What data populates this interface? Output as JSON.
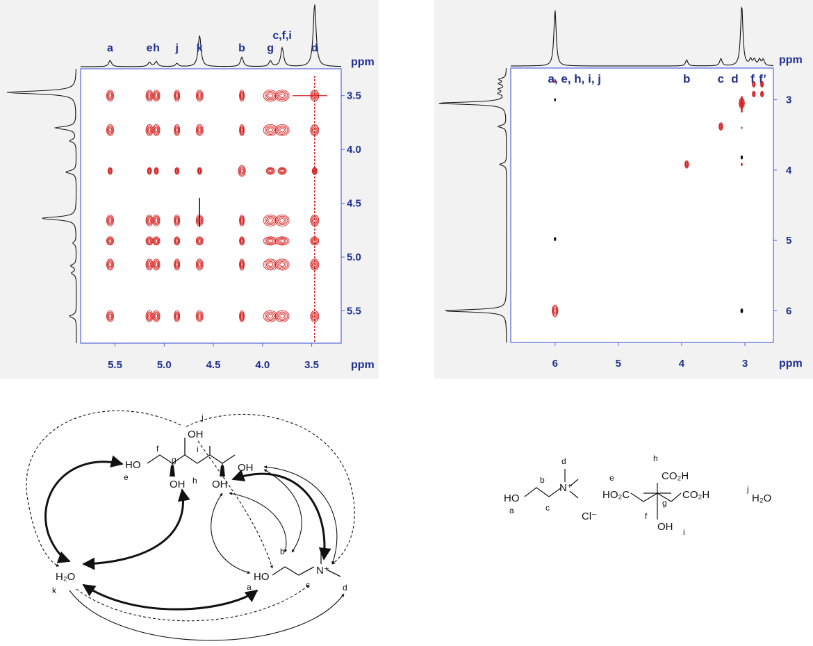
{
  "chart_data": [
    {
      "type": "scatter",
      "subtype": "2D NMR contour map",
      "x_unit": "ppm",
      "y_unit": "ppm",
      "xlim": [
        5.85,
        3.2
      ],
      "ylim": [
        3.25,
        5.8
      ],
      "x_ticks": [
        "5.5",
        "5.0",
        "4.5",
        "4.0",
        "3.5"
      ],
      "y_ticks": [
        "3.5",
        "4.0",
        "4.5",
        "5.0",
        "5.5"
      ],
      "peak_labels": [
        {
          "text": "a",
          "ppm": 5.55
        },
        {
          "text": "e",
          "ppm": 5.15
        },
        {
          "text": "h",
          "ppm": 5.08
        },
        {
          "text": "j",
          "ppm": 4.87
        },
        {
          "text": "k",
          "ppm": 4.64
        },
        {
          "text": "b",
          "ppm": 4.21
        },
        {
          "text": "g",
          "ppm": 3.92
        },
        {
          "text": "c,f,i",
          "ppm": 3.8
        },
        {
          "text": "d",
          "ppm": 3.47
        }
      ],
      "projection_peaks": [
        {
          "ppm": 5.55,
          "h": 0.1
        },
        {
          "ppm": 5.15,
          "h": 0.07
        },
        {
          "ppm": 5.08,
          "h": 0.08
        },
        {
          "ppm": 4.87,
          "h": 0.05
        },
        {
          "ppm": 4.64,
          "h": 0.5
        },
        {
          "ppm": 4.21,
          "h": 0.15
        },
        {
          "ppm": 3.92,
          "h": 0.09
        },
        {
          "ppm": 3.8,
          "h": 0.3
        },
        {
          "ppm": 3.47,
          "h": 1.0
        }
      ],
      "cross_peak_x": [
        5.55,
        5.15,
        5.08,
        4.87,
        4.64,
        4.21,
        3.92,
        3.8,
        3.47
      ],
      "cross_peak_y": [
        3.5,
        3.82,
        4.2,
        4.66,
        4.85,
        5.07,
        5.55
      ]
    },
    {
      "type": "scatter",
      "subtype": "2D NMR contour map",
      "x_unit": "ppm",
      "y_unit": "ppm",
      "xlim": [
        6.7,
        2.55
      ],
      "ylim": [
        2.55,
        6.45
      ],
      "x_ticks": [
        "6",
        "5",
        "4",
        "3"
      ],
      "y_ticks": [
        "3",
        "4",
        "5",
        "6"
      ],
      "peak_labels": [
        {
          "text": "a, e, h, i, j",
          "ppm": 6.0
        },
        {
          "text": "b",
          "ppm": 3.92
        },
        {
          "text": "c",
          "ppm": 3.38
        },
        {
          "text": "d",
          "ppm": 3.05
        },
        {
          "text": "f",
          "ppm": 2.88
        },
        {
          "text": "f’",
          "ppm": 2.75
        }
      ],
      "projection_peaks": [
        {
          "ppm": 6.0,
          "h": 0.92
        },
        {
          "ppm": 3.92,
          "h": 0.1
        },
        {
          "ppm": 3.38,
          "h": 0.12
        },
        {
          "ppm": 3.05,
          "h": 1.0
        },
        {
          "ppm": 2.91,
          "h": 0.1
        },
        {
          "ppm": 2.85,
          "h": 0.1
        },
        {
          "ppm": 2.77,
          "h": 0.1
        },
        {
          "ppm": 2.71,
          "h": 0.1
        }
      ],
      "cross_peaks": [
        {
          "x": 6.0,
          "y": 6.0,
          "c": "red",
          "s": 1.4
        },
        {
          "x": 3.92,
          "y": 3.92,
          "c": "red",
          "s": 0.9
        },
        {
          "x": 3.38,
          "y": 3.38,
          "c": "red",
          "s": 0.9
        },
        {
          "x": 3.05,
          "y": 3.05,
          "c": "red",
          "s": 1.3
        },
        {
          "x": 2.86,
          "y": 2.78,
          "c": "red",
          "s": 0.7
        },
        {
          "x": 2.86,
          "y": 2.92,
          "c": "red",
          "s": 0.7
        },
        {
          "x": 2.73,
          "y": 2.78,
          "c": "red",
          "s": 0.7
        },
        {
          "x": 2.73,
          "y": 2.92,
          "c": "red",
          "s": 0.7
        },
        {
          "x": 6.0,
          "y": 2.73,
          "c": "red",
          "s": 0.3
        },
        {
          "x": 6.0,
          "y": 3.0,
          "c": "black",
          "s": 0.3
        },
        {
          "x": 6.0,
          "y": 4.98,
          "c": "black",
          "s": 0.4
        },
        {
          "x": 3.05,
          "y": 3.82,
          "c": "black",
          "s": 0.4
        },
        {
          "x": 3.05,
          "y": 3.92,
          "c": "red",
          "s": 0.3
        },
        {
          "x": 3.05,
          "y": 3.4,
          "c": "red",
          "s": 0.2
        },
        {
          "x": 3.05,
          "y": 6.0,
          "c": "black",
          "s": 0.5
        }
      ]
    }
  ],
  "units": {
    "ppm": "ppm"
  },
  "structure_left": {
    "glycerol_oh": "OH",
    "label_j": "j",
    "ho": "HO",
    "label_e": "e",
    "label_f": "f",
    "label_g": "g",
    "label_h": "h",
    "label_i": "i",
    "oh_h": "OH",
    "oh_i": "OH",
    "oh_end": "OH",
    "water": "H₂O",
    "label_k": "k",
    "choline_ho": "HO",
    "label_a": "a",
    "label_b": "b",
    "label_c": "c",
    "label_d": "d",
    "n_plus": "N⁺"
  },
  "structure_right": {
    "label_d": "d",
    "label_b": "b",
    "ho": "HO",
    "label_a": "a",
    "label_c": "c",
    "n_plus": "N⁺",
    "chloride": "Cl⁻",
    "label_h": "h",
    "co2h_top": "CO₂H",
    "label_e": "e",
    "ho2c": "HO₂C",
    "label_g": "g",
    "co2h_right": "CO₂H",
    "label_f": "f",
    "oh": "OH",
    "label_i": "i",
    "label_j": "j",
    "water": "H₂O"
  }
}
